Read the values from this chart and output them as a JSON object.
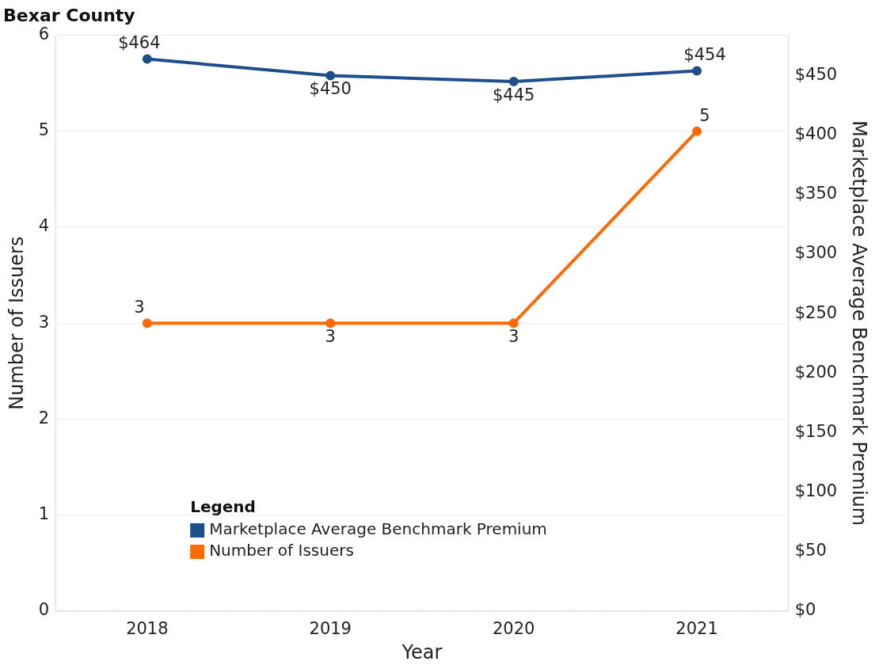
{
  "chart_data": {
    "type": "line",
    "title": "Bexar County",
    "xlabel": "Year",
    "ylabel": "Number of Issuers",
    "y2label": "Marketplace Average Benchmark Premium",
    "legend_title": "Legend",
    "legend": "bottom left",
    "grid": "y",
    "marker": "circle",
    "categories": [
      "2018",
      "2019",
      "2020",
      "2021"
    ],
    "series": [
      {
        "name": "Marketplace Average Benchmark Premium",
        "color": "#1f4e8c",
        "axis": "y2",
        "values": [
          464,
          450,
          445,
          454
        ],
        "value_labels": [
          "$464",
          "$450",
          "$445",
          "$454"
        ]
      },
      {
        "name": "Number of Issuers",
        "color": "#ff6a00",
        "values": [
          3,
          3,
          3,
          5
        ],
        "value_labels": [
          "3",
          "3",
          "3",
          "5"
        ]
      }
    ],
    "ylim": [
      0,
      6
    ],
    "yticks": [
      0,
      1,
      2,
      3,
      4,
      5,
      6
    ],
    "y2lim": [
      0,
      484
    ],
    "y2ticks": [
      {
        "value": 0,
        "label": "$0"
      },
      {
        "value": 50,
        "label": "$50"
      },
      {
        "value": 100,
        "label": "$100"
      },
      {
        "value": 150,
        "label": "$150"
      },
      {
        "value": 200,
        "label": "$200"
      },
      {
        "value": 250,
        "label": "$250"
      },
      {
        "value": 300,
        "label": "$300"
      },
      {
        "value": 350,
        "label": "$350"
      },
      {
        "value": 400,
        "label": "$400"
      },
      {
        "value": 450,
        "label": "$450"
      }
    ]
  }
}
